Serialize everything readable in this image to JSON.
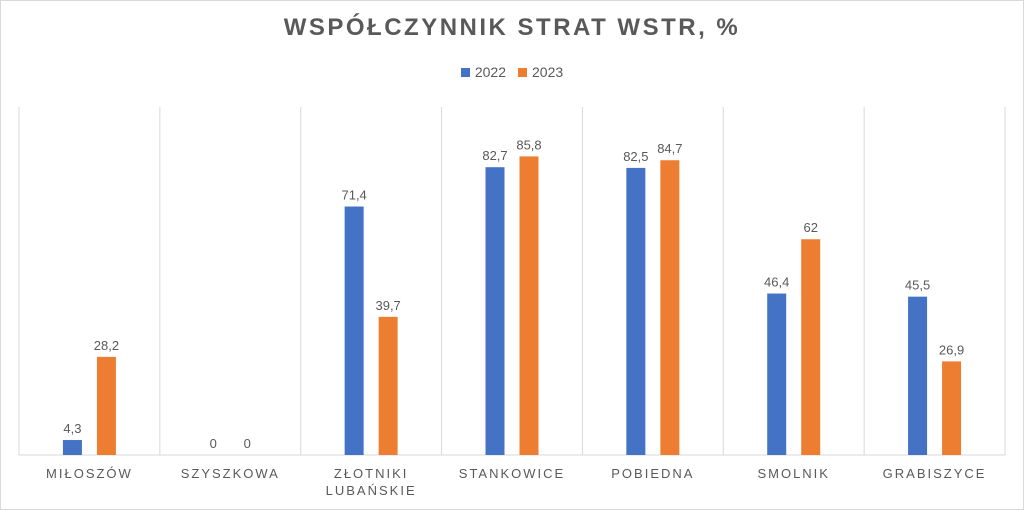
{
  "chart_data": {
    "type": "bar",
    "title": "WSPÓŁCZYNNIK STRAT WSTR, %",
    "categories": [
      [
        "MIŁOSZÓW"
      ],
      [
        "SZYSZKOWA"
      ],
      [
        "ZŁOTNIKI",
        "LUBAŃSKIE"
      ],
      [
        "STANKOWICE"
      ],
      [
        "POBIEDNA"
      ],
      [
        "SMOLNIK"
      ],
      [
        "GRABISZYCE"
      ]
    ],
    "series": [
      {
        "name": "2022",
        "color": "#4472c4",
        "values": [
          4.3,
          0,
          71.4,
          82.7,
          82.5,
          46.4,
          45.5
        ],
        "labels": [
          "4,3",
          "0",
          "71,4",
          "82,7",
          "82,5",
          "46,4",
          "45,5"
        ]
      },
      {
        "name": "2023",
        "color": "#ed7d31",
        "values": [
          28.2,
          0,
          39.7,
          85.8,
          84.7,
          62,
          26.9
        ],
        "labels": [
          "28,2",
          "0",
          "39,7",
          "85,8",
          "84,7",
          "62",
          "26,9"
        ]
      }
    ],
    "ylim": [
      0,
      100
    ],
    "grid": "vertical-category-separators",
    "legend_position": "top"
  }
}
